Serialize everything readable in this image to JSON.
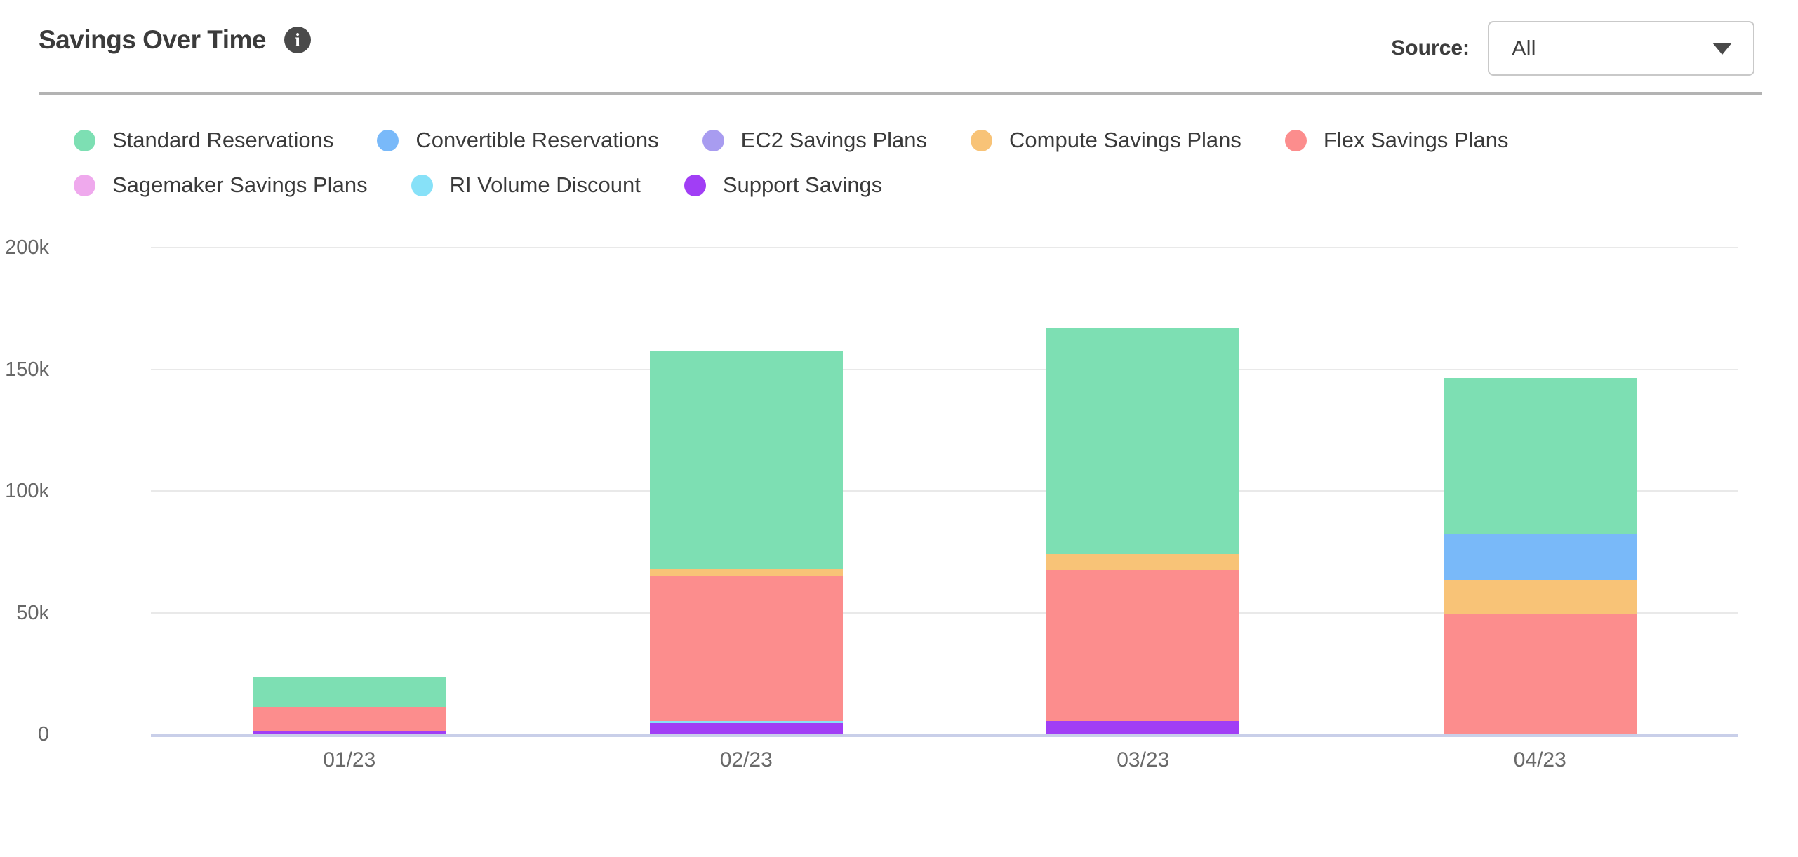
{
  "header": {
    "title": "Savings Over Time",
    "info_icon_glyph": "i",
    "source_label": "Source:",
    "source_value": "All"
  },
  "chart_data": {
    "type": "bar",
    "variant": "stacked-vertical",
    "title": "Savings Over Time",
    "unit": "USD thousands (k)",
    "categories": [
      "01/23",
      "02/23",
      "03/23",
      "04/23"
    ],
    "series": [
      {
        "name": "Standard Reservations",
        "color": "#7ddfb3",
        "values": [
          12.3,
          89.6,
          92.8,
          64.0
        ]
      },
      {
        "name": "Convertible Reservations",
        "color": "#79b9f9",
        "values": [
          0,
          0,
          0,
          19.0
        ]
      },
      {
        "name": "EC2 Savings Plans",
        "color": "#a89cf0",
        "values": [
          0,
          0,
          0,
          0
        ]
      },
      {
        "name": "Compute Savings Plans",
        "color": "#f8c377",
        "values": [
          0,
          2.9,
          6.6,
          14.1
        ]
      },
      {
        "name": "Flex Savings Plans",
        "color": "#fc8d8d",
        "values": [
          10.0,
          59.3,
          62.0,
          49.3
        ]
      },
      {
        "name": "Sagemaker Savings Plans",
        "color": "#efa9ed",
        "values": [
          0,
          0,
          0,
          0
        ]
      },
      {
        "name": "RI Volume Discount",
        "color": "#87e1f8",
        "values": [
          0,
          0.9,
          0,
          0
        ]
      },
      {
        "name": "Support Savings",
        "color": "#a13ef5",
        "values": [
          1.2,
          4.6,
          5.5,
          0
        ]
      }
    ],
    "stack_order_bottom_to_top": [
      "Support Savings",
      "RI Volume Discount",
      "Sagemaker Savings Plans",
      "Flex Savings Plans",
      "Compute Savings Plans",
      "EC2 Savings Plans",
      "Convertible Reservations",
      "Standard Reservations"
    ],
    "totals": [
      23.5,
      157.3,
      166.9,
      146.4
    ],
    "ylim": [
      0,
      200
    ],
    "y_ticks": [
      "200k",
      "150k",
      "100k",
      "50k",
      "0"
    ],
    "y_tick_values": [
      200,
      150,
      100,
      50,
      0
    ],
    "grid": true,
    "legend_position": "top"
  }
}
